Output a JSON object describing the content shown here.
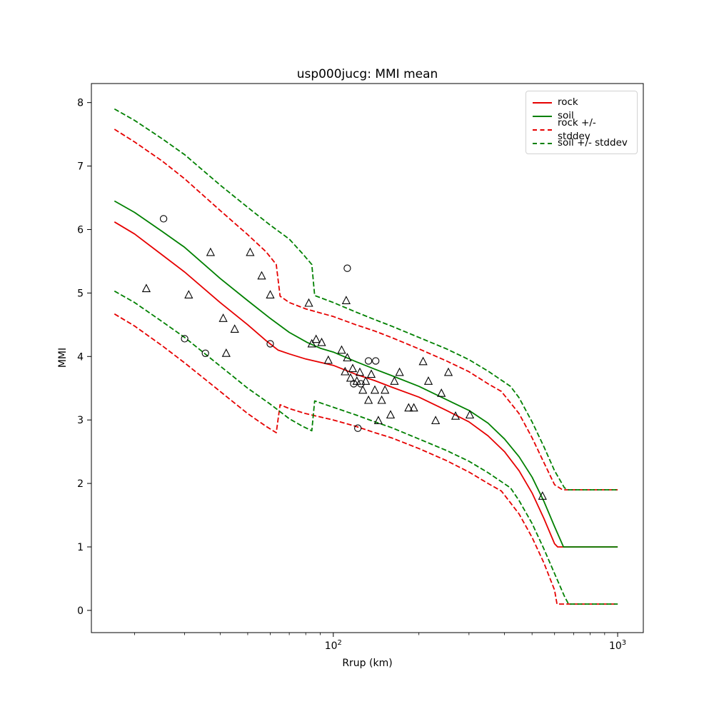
{
  "chart_data": {
    "type": "line",
    "title": "usp000jucg: MMI mean",
    "xlabel": "Rrup (km)",
    "ylabel": "MMI",
    "x_scale": "log",
    "xlim": [
      14.1,
      1231
    ],
    "ylim": [
      -0.35,
      8.3
    ],
    "yticks": [
      0,
      1,
      2,
      3,
      4,
      5,
      6,
      7,
      8
    ],
    "xticks": [
      {
        "value": 100,
        "base": "10",
        "exp": "2"
      },
      {
        "value": 1000,
        "base": "10",
        "exp": "3"
      }
    ],
    "colors": {
      "rock": "#e60000",
      "soil": "#008000",
      "marker": "#000000"
    },
    "lines": [
      {
        "name": "rock +/- stddev upper",
        "color": "#e60000",
        "dash": "dashed",
        "points": [
          [
            17,
            7.58
          ],
          [
            20,
            7.38
          ],
          [
            25,
            7.08
          ],
          [
            30,
            6.8
          ],
          [
            40,
            6.3
          ],
          [
            50,
            5.92
          ],
          [
            58,
            5.65
          ],
          [
            63,
            5.45
          ],
          [
            65,
            4.95
          ],
          [
            70,
            4.85
          ],
          [
            80,
            4.75
          ],
          [
            100,
            4.63
          ],
          [
            120,
            4.5
          ],
          [
            140,
            4.4
          ],
          [
            160,
            4.3
          ],
          [
            200,
            4.12
          ],
          [
            250,
            3.93
          ],
          [
            300,
            3.76
          ],
          [
            350,
            3.57
          ],
          [
            390,
            3.45
          ],
          [
            450,
            3.1
          ],
          [
            500,
            2.72
          ],
          [
            550,
            2.33
          ],
          [
            600,
            1.98
          ],
          [
            640,
            1.9
          ],
          [
            1000,
            1.9
          ]
        ]
      },
      {
        "name": "rock +/- stddev lower",
        "color": "#e60000",
        "dash": "dashed",
        "points": [
          [
            17,
            4.67
          ],
          [
            20,
            4.48
          ],
          [
            25,
            4.17
          ],
          [
            30,
            3.9
          ],
          [
            40,
            3.45
          ],
          [
            50,
            3.1
          ],
          [
            58,
            2.9
          ],
          [
            63,
            2.8
          ],
          [
            65,
            3.24
          ],
          [
            70,
            3.18
          ],
          [
            80,
            3.1
          ],
          [
            100,
            3.0
          ],
          [
            120,
            2.9
          ],
          [
            140,
            2.8
          ],
          [
            160,
            2.72
          ],
          [
            200,
            2.55
          ],
          [
            250,
            2.36
          ],
          [
            300,
            2.18
          ],
          [
            350,
            2.0
          ],
          [
            390,
            1.88
          ],
          [
            450,
            1.52
          ],
          [
            500,
            1.15
          ],
          [
            550,
            0.75
          ],
          [
            600,
            0.32
          ],
          [
            612,
            0.1
          ],
          [
            1000,
            0.1
          ]
        ]
      },
      {
        "name": "soil +/- stddev upper",
        "color": "#008000",
        "dash": "dashed",
        "points": [
          [
            17,
            7.9
          ],
          [
            20,
            7.72
          ],
          [
            25,
            7.43
          ],
          [
            30,
            7.18
          ],
          [
            40,
            6.7
          ],
          [
            50,
            6.35
          ],
          [
            60,
            6.07
          ],
          [
            70,
            5.85
          ],
          [
            78,
            5.62
          ],
          [
            84,
            5.45
          ],
          [
            86,
            4.96
          ],
          [
            100,
            4.85
          ],
          [
            120,
            4.7
          ],
          [
            140,
            4.58
          ],
          [
            160,
            4.48
          ],
          [
            200,
            4.3
          ],
          [
            250,
            4.12
          ],
          [
            300,
            3.95
          ],
          [
            350,
            3.77
          ],
          [
            420,
            3.53
          ],
          [
            450,
            3.35
          ],
          [
            500,
            2.97
          ],
          [
            550,
            2.58
          ],
          [
            600,
            2.2
          ],
          [
            650,
            1.93
          ],
          [
            672,
            1.9
          ],
          [
            1000,
            1.9
          ]
        ]
      },
      {
        "name": "soil +/- stddev lower",
        "color": "#008000",
        "dash": "dashed",
        "points": [
          [
            17,
            5.03
          ],
          [
            20,
            4.85
          ],
          [
            25,
            4.55
          ],
          [
            30,
            4.3
          ],
          [
            40,
            3.85
          ],
          [
            50,
            3.5
          ],
          [
            60,
            3.25
          ],
          [
            70,
            3.02
          ],
          [
            78,
            2.9
          ],
          [
            84,
            2.83
          ],
          [
            86,
            3.3
          ],
          [
            100,
            3.2
          ],
          [
            120,
            3.08
          ],
          [
            140,
            2.97
          ],
          [
            160,
            2.88
          ],
          [
            200,
            2.7
          ],
          [
            250,
            2.52
          ],
          [
            300,
            2.35
          ],
          [
            350,
            2.17
          ],
          [
            420,
            1.93
          ],
          [
            450,
            1.73
          ],
          [
            500,
            1.37
          ],
          [
            550,
            0.97
          ],
          [
            600,
            0.58
          ],
          [
            650,
            0.22
          ],
          [
            672,
            0.1
          ],
          [
            1000,
            0.1
          ]
        ]
      },
      {
        "name": "rock",
        "color": "#e60000",
        "dash": "solid",
        "points": [
          [
            17,
            6.12
          ],
          [
            20,
            5.93
          ],
          [
            25,
            5.6
          ],
          [
            30,
            5.33
          ],
          [
            40,
            4.85
          ],
          [
            50,
            4.5
          ],
          [
            58,
            4.25
          ],
          [
            64,
            4.1
          ],
          [
            70,
            4.04
          ],
          [
            80,
            3.96
          ],
          [
            100,
            3.86
          ],
          [
            120,
            3.72
          ],
          [
            140,
            3.62
          ],
          [
            160,
            3.52
          ],
          [
            200,
            3.36
          ],
          [
            250,
            3.15
          ],
          [
            300,
            2.97
          ],
          [
            350,
            2.75
          ],
          [
            400,
            2.5
          ],
          [
            450,
            2.2
          ],
          [
            500,
            1.85
          ],
          [
            550,
            1.45
          ],
          [
            600,
            1.05
          ],
          [
            615,
            1.0
          ],
          [
            1000,
            1.0
          ]
        ]
      },
      {
        "name": "soil",
        "color": "#008000",
        "dash": "solid",
        "points": [
          [
            17,
            6.45
          ],
          [
            20,
            6.27
          ],
          [
            25,
            5.97
          ],
          [
            30,
            5.72
          ],
          [
            40,
            5.23
          ],
          [
            50,
            4.88
          ],
          [
            60,
            4.6
          ],
          [
            70,
            4.38
          ],
          [
            81,
            4.22
          ],
          [
            90,
            4.13
          ],
          [
            100,
            4.07
          ],
          [
            120,
            3.92
          ],
          [
            140,
            3.8
          ],
          [
            160,
            3.7
          ],
          [
            200,
            3.53
          ],
          [
            250,
            3.32
          ],
          [
            300,
            3.15
          ],
          [
            350,
            2.95
          ],
          [
            400,
            2.7
          ],
          [
            450,
            2.42
          ],
          [
            500,
            2.1
          ],
          [
            550,
            1.72
          ],
          [
            600,
            1.32
          ],
          [
            645,
            1.0
          ],
          [
            1000,
            1.0
          ]
        ]
      }
    ],
    "scatter": [
      {
        "name": "observations-circles",
        "marker": "circle",
        "color": "#000000",
        "points": [
          [
            25.3,
            6.17
          ],
          [
            30,
            4.28
          ],
          [
            35.5,
            4.05
          ],
          [
            60,
            4.2
          ],
          [
            112,
            5.39
          ],
          [
            118,
            3.57
          ],
          [
            125,
            3.57
          ],
          [
            133,
            3.93
          ],
          [
            141,
            3.93
          ],
          [
            122,
            2.87
          ]
        ]
      },
      {
        "name": "observations-triangles",
        "marker": "triangle",
        "color": "#000000",
        "points": [
          [
            22,
            5.07
          ],
          [
            31,
            4.97
          ],
          [
            37,
            5.64
          ],
          [
            41,
            4.6
          ],
          [
            42,
            4.05
          ],
          [
            45,
            4.43
          ],
          [
            51,
            5.64
          ],
          [
            56,
            5.27
          ],
          [
            60,
            4.97
          ],
          [
            82,
            4.84
          ],
          [
            84,
            4.2
          ],
          [
            87,
            4.27
          ],
          [
            91,
            4.22
          ],
          [
            96,
            3.94
          ],
          [
            107,
            4.1
          ],
          [
            110,
            3.76
          ],
          [
            111,
            4.88
          ],
          [
            112,
            3.98
          ],
          [
            115,
            3.66
          ],
          [
            117,
            3.81
          ],
          [
            121,
            3.61
          ],
          [
            124,
            3.75
          ],
          [
            127,
            3.47
          ],
          [
            130,
            3.61
          ],
          [
            133,
            3.31
          ],
          [
            136,
            3.72
          ],
          [
            140,
            3.47
          ],
          [
            144,
            2.99
          ],
          [
            148,
            3.31
          ],
          [
            152,
            3.47
          ],
          [
            159,
            3.08
          ],
          [
            164,
            3.61
          ],
          [
            171,
            3.75
          ],
          [
            184,
            3.19
          ],
          [
            192,
            3.19
          ],
          [
            207,
            3.92
          ],
          [
            216,
            3.61
          ],
          [
            229,
            2.99
          ],
          [
            240,
            3.42
          ],
          [
            254,
            3.75
          ],
          [
            269,
            3.06
          ],
          [
            302,
            3.08
          ],
          [
            544,
            1.8
          ]
        ]
      }
    ],
    "legend": [
      {
        "label": "rock",
        "color": "#e60000",
        "style": "solid"
      },
      {
        "label": "soil",
        "color": "#008000",
        "style": "solid"
      },
      {
        "label": "rock +/- stddev",
        "color": "#e60000",
        "style": "dashed"
      },
      {
        "label": "soil +/- stddev",
        "color": "#008000",
        "style": "dashed"
      }
    ]
  }
}
